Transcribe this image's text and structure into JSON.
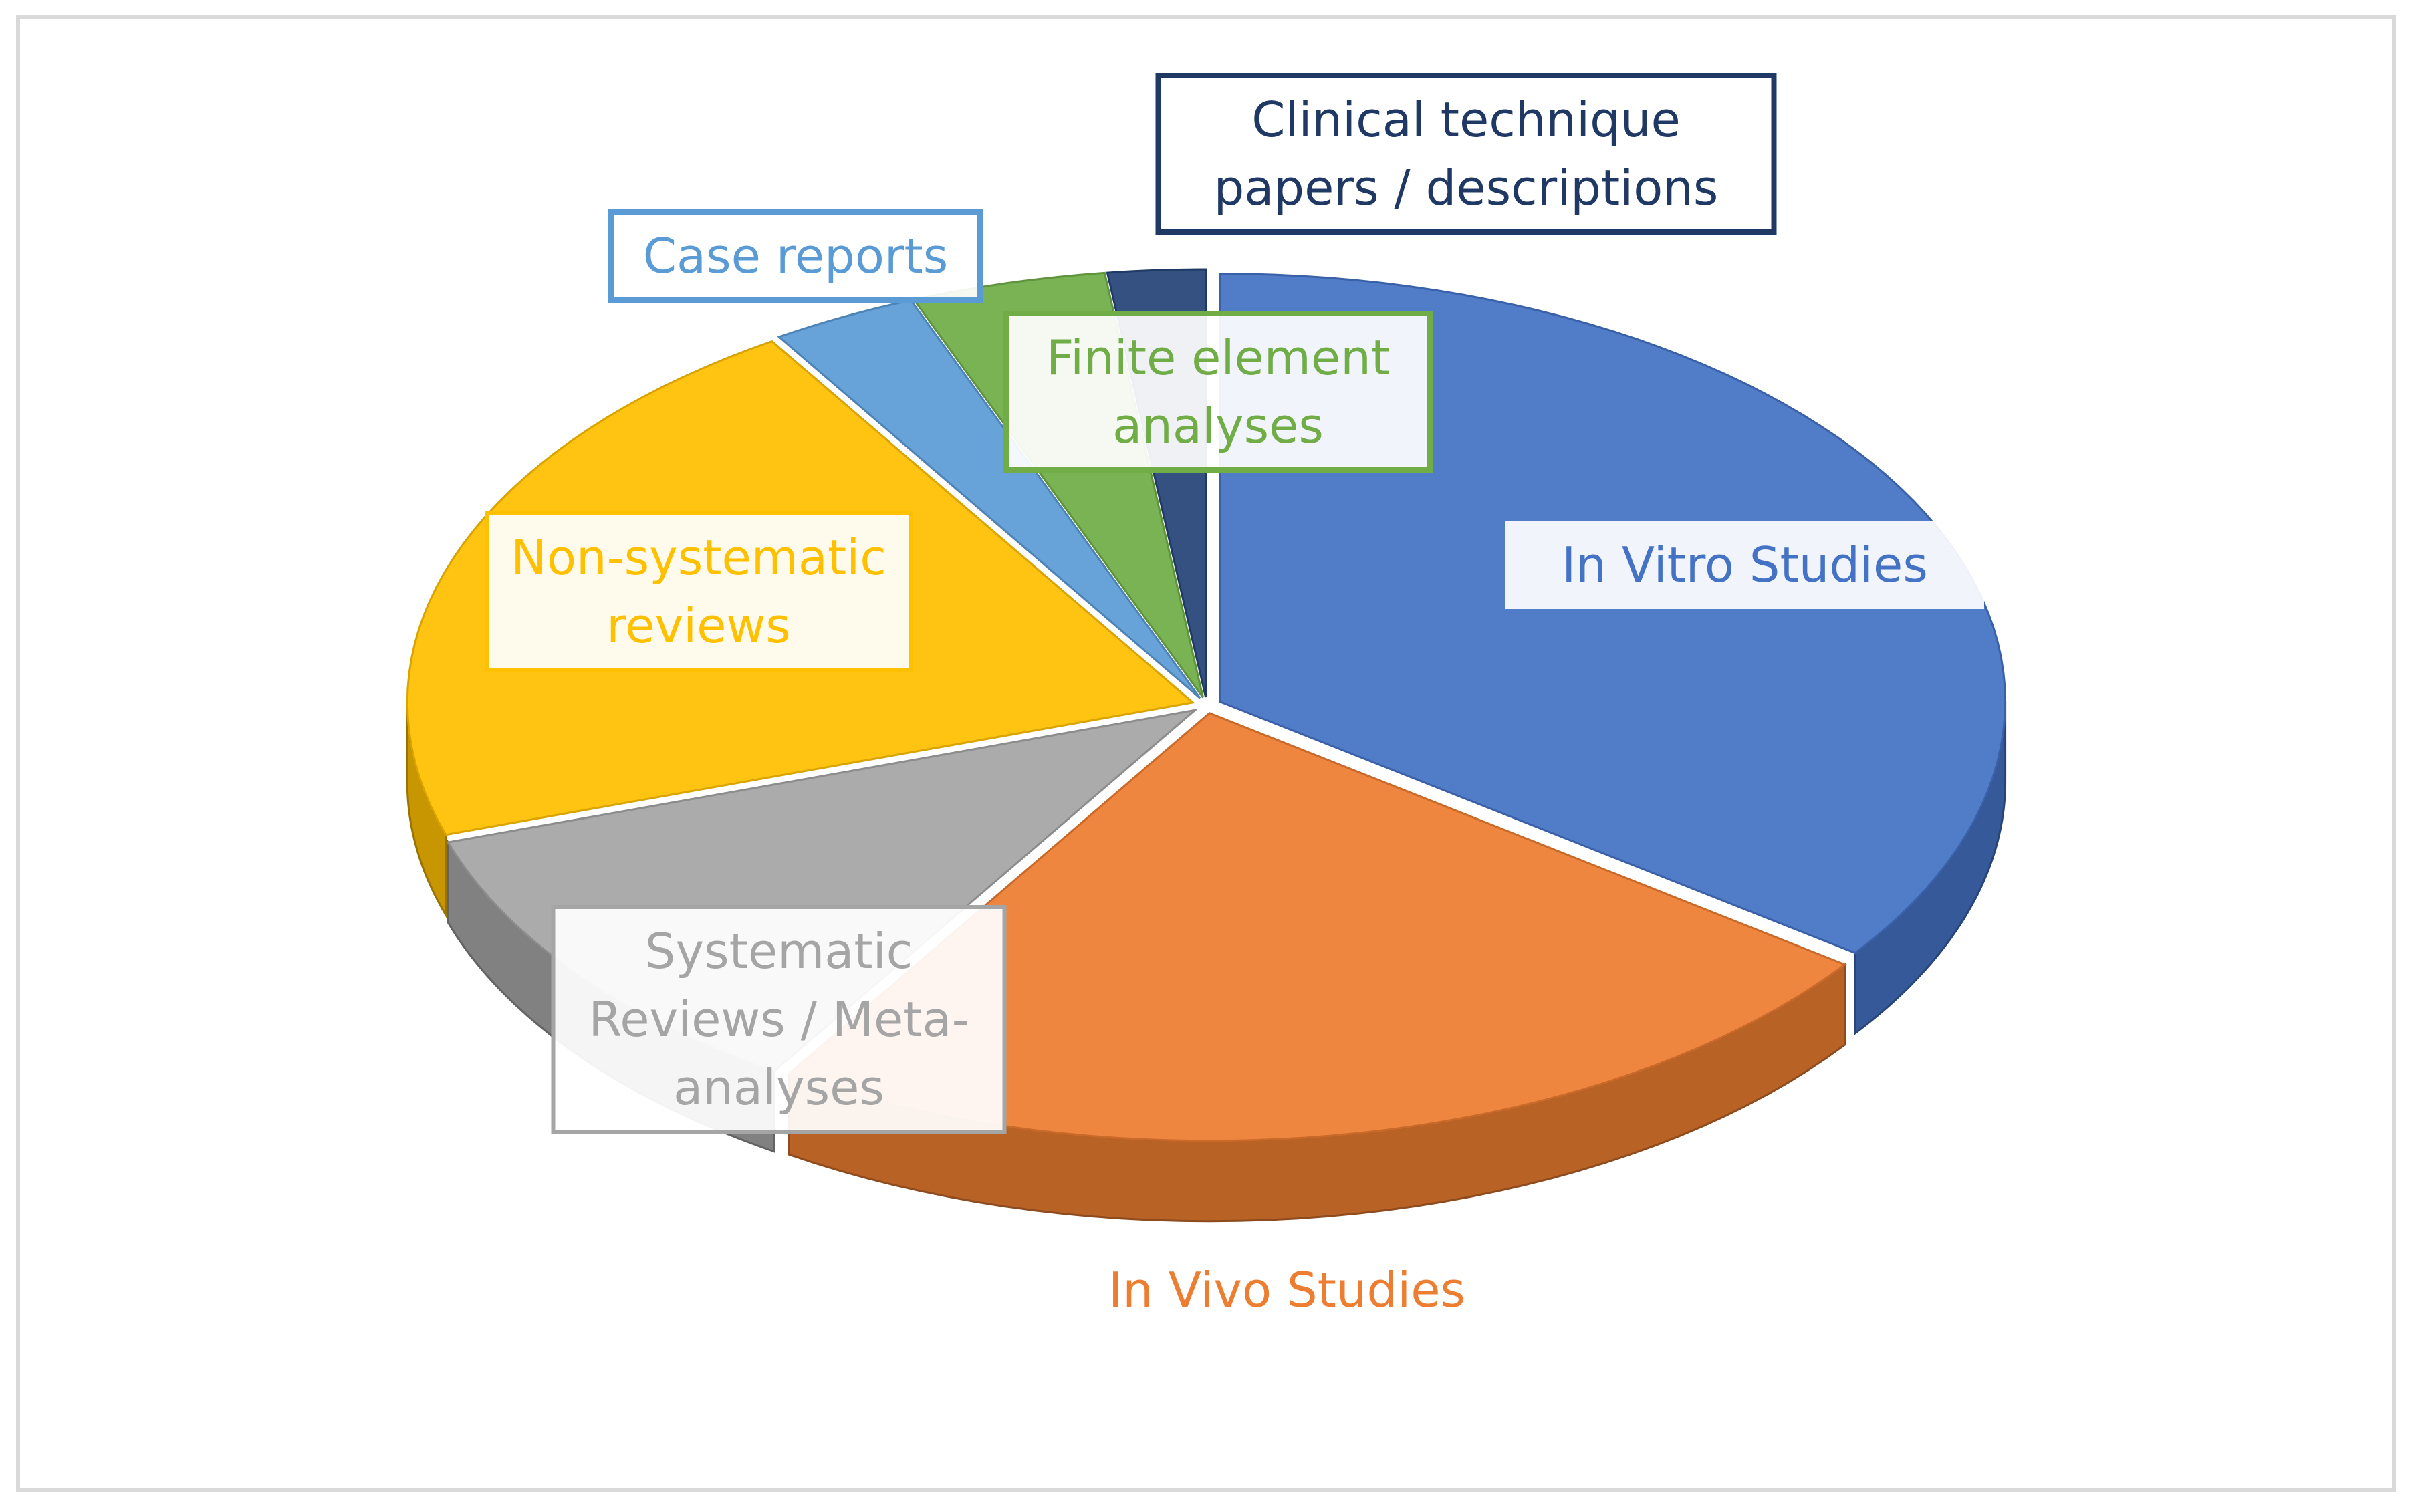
{
  "chart_data": {
    "type": "pie",
    "style": "3d-exploded",
    "title": "",
    "legend": "none",
    "slices": [
      {
        "label": "In Vitro Studies",
        "value": 35,
        "color": "#4472C4",
        "label_color": "#4472C4"
      },
      {
        "label": "In Vivo Studies",
        "value": 24,
        "color": "#ED7D31",
        "label_color": "#ED7D31"
      },
      {
        "label": "Systematic Reviews / Meta-analyses",
        "value": 11,
        "color": "#A5A5A5",
        "label_color": "#A5A5A5"
      },
      {
        "label": "Non-systematic reviews",
        "value": 21,
        "color": "#FFC000",
        "label_color": "#FFC000"
      },
      {
        "label": "Case reports",
        "value": 3,
        "color": "#5B9BD5",
        "label_color": "#5B9BD5"
      },
      {
        "label": "Finite element analyses",
        "value": 4,
        "color": "#70AD47",
        "label_color": "#70AD47"
      },
      {
        "label": "Clinical technique papers / descriptions",
        "value": 2,
        "color": "#264478",
        "label_color": "#203864"
      }
    ]
  }
}
